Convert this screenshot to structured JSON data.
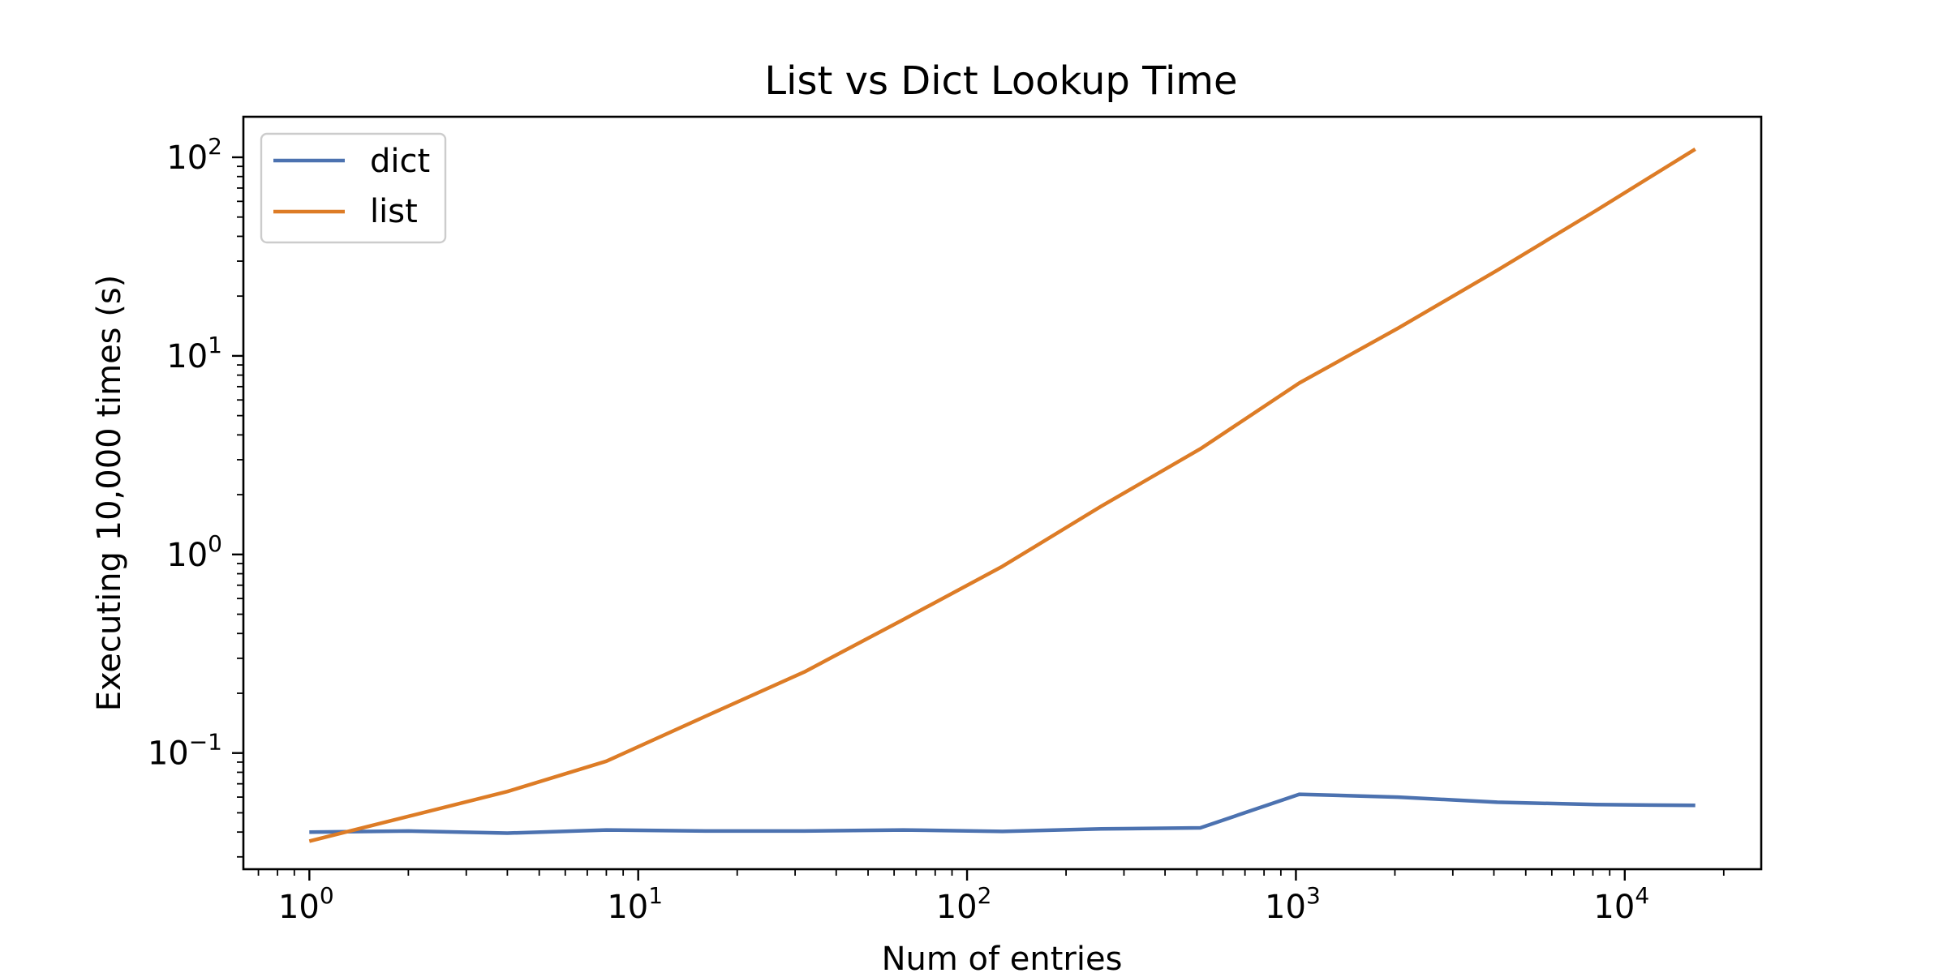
{
  "chart_data": {
    "type": "line",
    "title": "List vs Dict Lookup Time",
    "xlabel": "Num of entries",
    "ylabel": "Executing 10,000 times (s)",
    "xscale": "log",
    "yscale": "log",
    "xlim": [
      0.63,
      26000
    ],
    "ylim": [
      0.026,
      160
    ],
    "grid": false,
    "legend_position": "upper-left",
    "x": [
      1,
      2,
      4,
      8,
      16,
      32,
      64,
      128,
      256,
      512,
      1024,
      2048,
      4096,
      8192,
      16384
    ],
    "series": [
      {
        "name": "dict",
        "color": "#4c72b0",
        "values": [
          0.04,
          0.0405,
          0.0395,
          0.041,
          0.0405,
          0.0405,
          0.041,
          0.0403,
          0.0415,
          0.042,
          0.062,
          0.06,
          0.0565,
          0.055,
          0.0545
        ]
      },
      {
        "name": "list",
        "color": "#dd7c26",
        "values": [
          0.036,
          0.048,
          0.064,
          0.091,
          0.153,
          0.256,
          0.47,
          0.87,
          1.75,
          3.4,
          7.3,
          13.8,
          27.0,
          54.0,
          110.0
        ]
      }
    ],
    "x_ticks": [
      {
        "value": 1,
        "base": "10",
        "exp": "0"
      },
      {
        "value": 10,
        "base": "10",
        "exp": "1"
      },
      {
        "value": 100,
        "base": "10",
        "exp": "2"
      },
      {
        "value": 1000,
        "base": "10",
        "exp": "3"
      },
      {
        "value": 10000,
        "base": "10",
        "exp": "4"
      }
    ],
    "y_ticks": [
      {
        "value": 0.1,
        "base": "10",
        "exp": "−1"
      },
      {
        "value": 1,
        "base": "10",
        "exp": "0"
      },
      {
        "value": 10,
        "base": "10",
        "exp": "1"
      },
      {
        "value": 100,
        "base": "10",
        "exp": "2"
      }
    ]
  }
}
